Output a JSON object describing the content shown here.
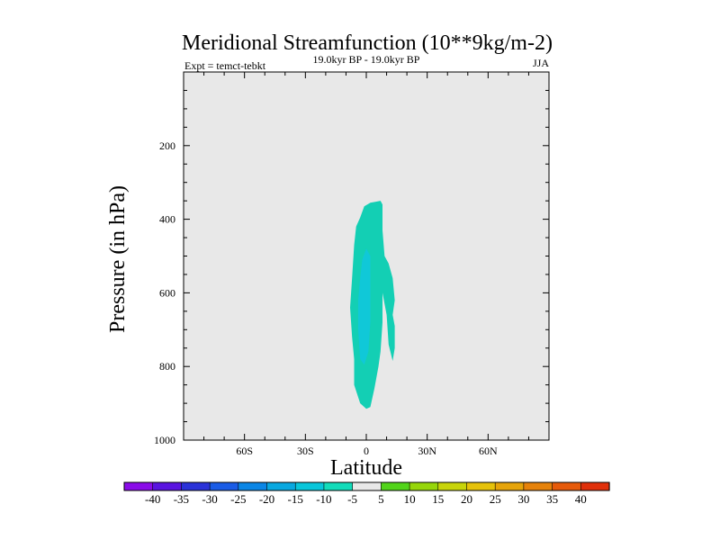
{
  "chart_data": {
    "type": "contour",
    "title": "Meridional Streamfunction (10**9kg/m-2)",
    "subtitle": "19.0kyr BP - 19.0kyr BP",
    "left_label": "Expt = temct-tebkt",
    "right_label": "JJA",
    "xlabel": "Latitude",
    "ylabel": "Pressure (in hPa)",
    "xlim": [
      -90,
      90
    ],
    "ylim": [
      1000,
      0
    ],
    "x_ticks": [
      {
        "value": -60,
        "label": "60S"
      },
      {
        "value": -30,
        "label": "30S"
      },
      {
        "value": 0,
        "label": "0"
      },
      {
        "value": 30,
        "label": "30N"
      },
      {
        "value": 60,
        "label": "60N"
      }
    ],
    "y_ticks": [
      {
        "value": 200,
        "label": "200"
      },
      {
        "value": 400,
        "label": "400"
      },
      {
        "value": 600,
        "label": "600"
      },
      {
        "value": 800,
        "label": "800"
      },
      {
        "value": 1000,
        "label": "1000"
      }
    ],
    "background_color": "#e8e8e8",
    "contour_regions": [
      {
        "level_range": "-10 to -5",
        "color": "#13cfb4",
        "outline": [
          [
            -3,
            395
          ],
          [
            -1,
            365
          ],
          [
            2,
            355
          ],
          [
            5,
            352
          ],
          [
            7,
            350
          ],
          [
            8,
            360
          ],
          [
            8,
            430
          ],
          [
            9,
            500
          ],
          [
            11,
            520
          ],
          [
            13,
            560
          ],
          [
            14,
            620
          ],
          [
            13,
            660
          ],
          [
            14,
            690
          ],
          [
            14,
            750
          ],
          [
            13,
            785
          ],
          [
            11,
            740
          ],
          [
            10,
            660
          ],
          [
            8,
            600
          ],
          [
            8,
            680
          ],
          [
            7,
            760
          ],
          [
            6,
            800
          ],
          [
            4,
            860
          ],
          [
            2,
            910
          ],
          [
            0,
            915
          ],
          [
            -3,
            900
          ],
          [
            -6,
            850
          ],
          [
            -6,
            780
          ],
          [
            -7,
            720
          ],
          [
            -8,
            640
          ],
          [
            -7,
            560
          ],
          [
            -6,
            470
          ],
          [
            -5,
            420
          ]
        ]
      },
      {
        "level_range": "-15 to -10",
        "color": "#10c8d8",
        "outline": [
          [
            -2,
            510
          ],
          [
            0,
            480
          ],
          [
            2,
            500
          ],
          [
            2,
            580
          ],
          [
            2,
            680
          ],
          [
            1,
            760
          ],
          [
            -1,
            795
          ],
          [
            -3,
            780
          ],
          [
            -4,
            700
          ],
          [
            -4,
            620
          ],
          [
            -3,
            560
          ]
        ]
      }
    ],
    "colorbar": {
      "labels": [
        "-40",
        "-35",
        "-30",
        "-25",
        "-20",
        "-15",
        "-10",
        "-5",
        "5",
        "10",
        "15",
        "20",
        "25",
        "30",
        "35",
        "40"
      ],
      "colors": [
        "#8a0ce8",
        "#5a14e0",
        "#2a32d8",
        "#1a5ce6",
        "#0a86e6",
        "#08a8e0",
        "#08c6da",
        "#12dcba",
        "#e8e8e8",
        "#52d41a",
        "#96d60a",
        "#c8d40a",
        "#e6c20a",
        "#e6a40a",
        "#e6820a",
        "#e65a0a",
        "#e0300a"
      ]
    }
  }
}
